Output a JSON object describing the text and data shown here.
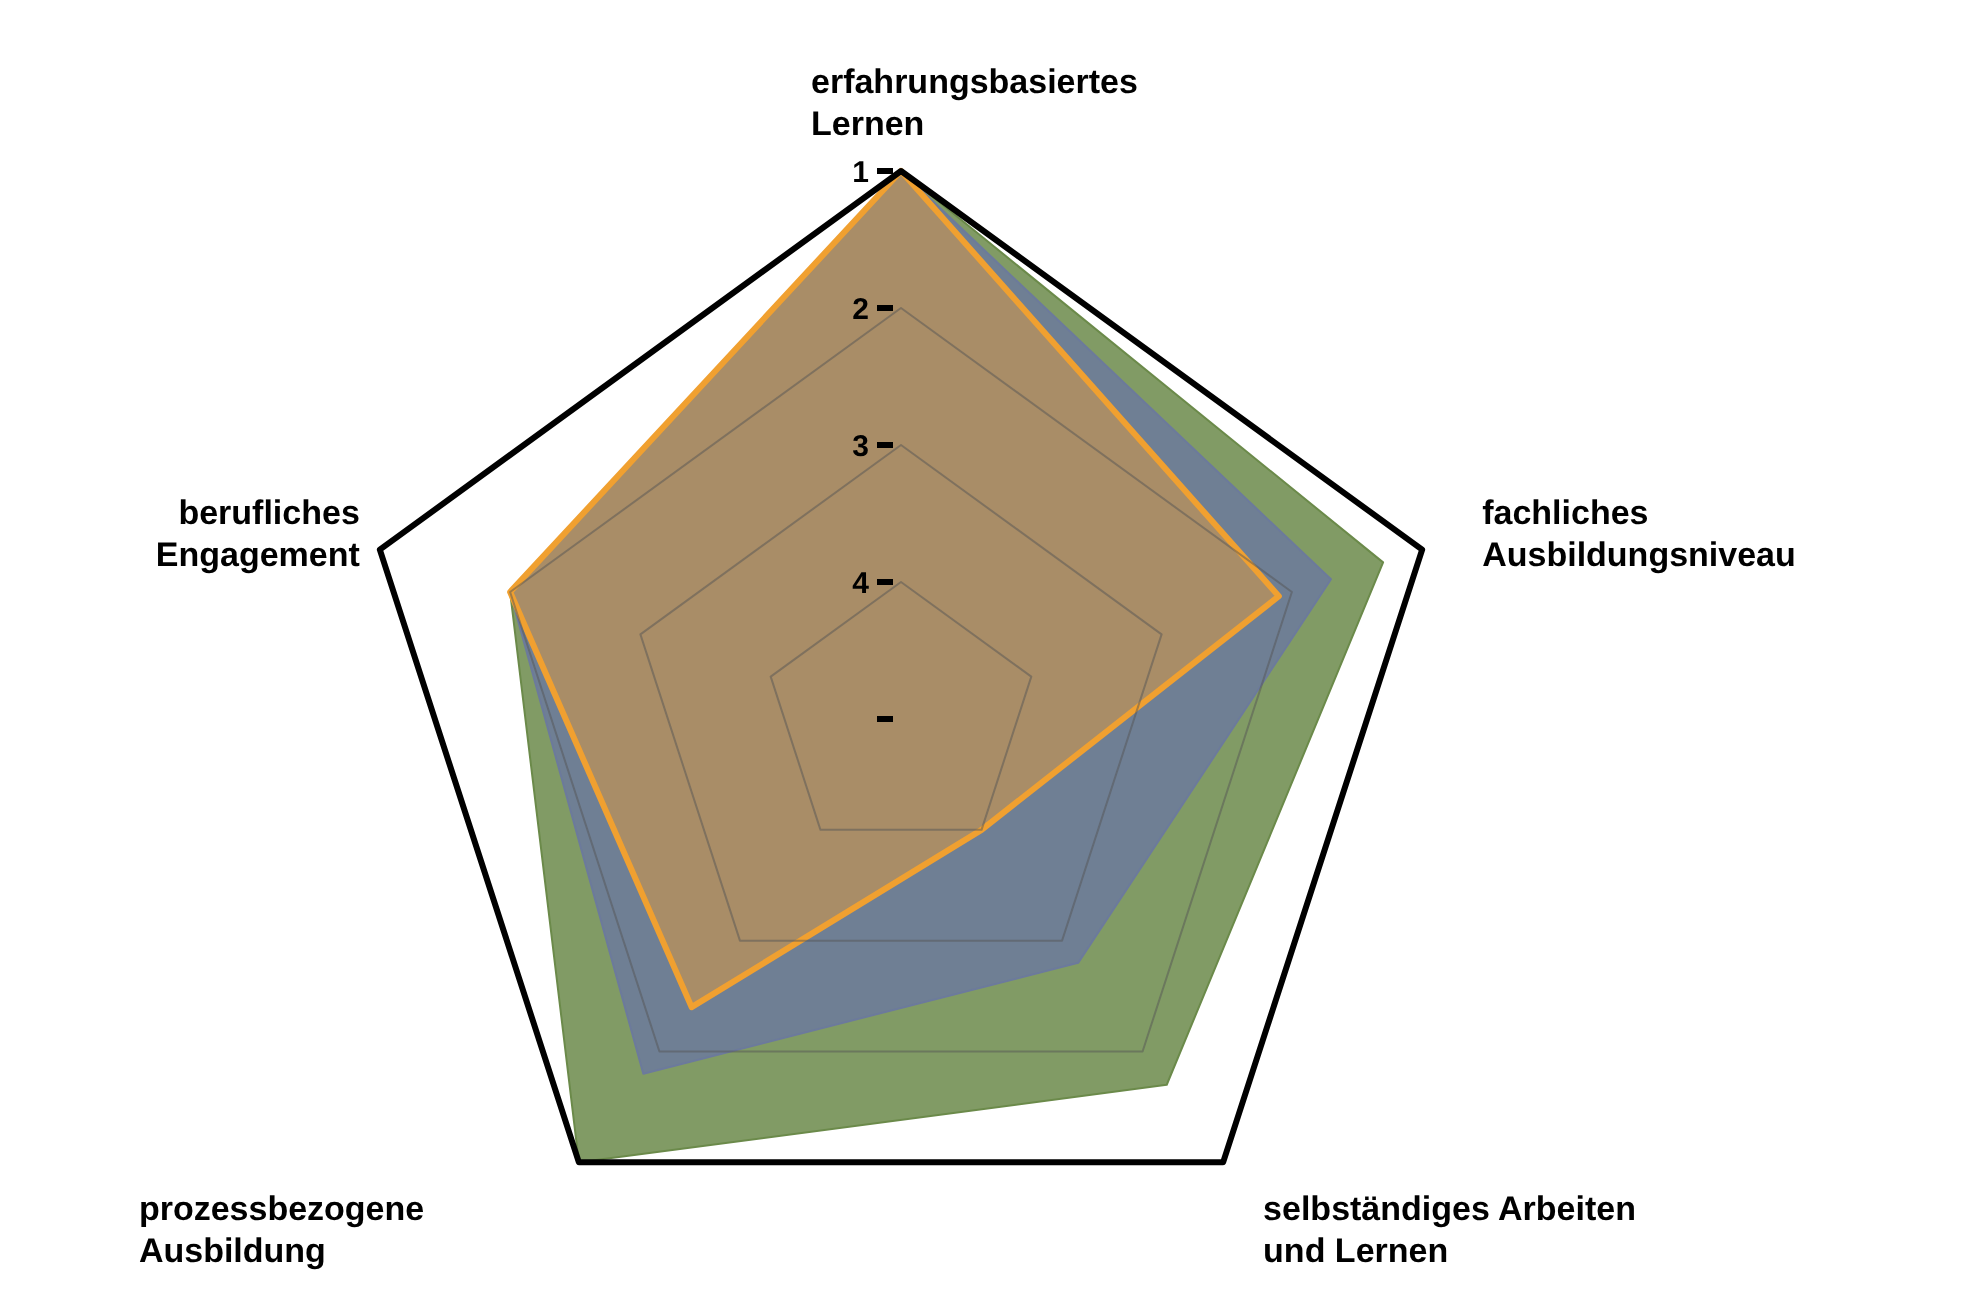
{
  "chart_data": {
    "type": "radar",
    "categories": [
      "erfahrungsbasiertes Lernen",
      "fachliches Ausbildungsniveau",
      "selbständiges Arbeiten und Lernen",
      "prozessbezogene Ausbildung",
      "berufliches Engagement"
    ],
    "ylim": [
      5,
      1
    ],
    "yticks": [
      1,
      2,
      3,
      4
    ],
    "series": [
      {
        "color": "#6b8a4a",
        "values": [
          1.0,
          1.3,
          1.7,
          1.0,
          2.0
        ]
      },
      {
        "color": "#6c7a9c",
        "values": [
          1.0,
          1.7,
          2.8,
          1.8,
          2.0
        ]
      },
      {
        "color": "#f0a030",
        "values": [
          1.0,
          2.1,
          4.0,
          2.4,
          2.0
        ]
      }
    ]
  }
}
